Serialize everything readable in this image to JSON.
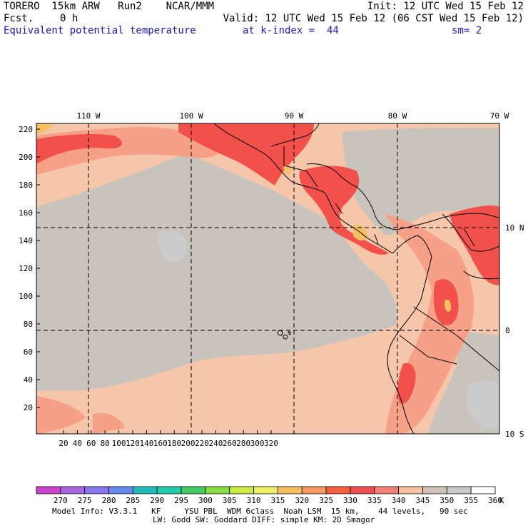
{
  "header": {
    "model": "TORERO  15km ARW   Run2    NCAR/MMM",
    "init": "Init: 12 UTC Wed 15 Feb 12",
    "fcst_label": "Fcst.",
    "fcst_value": "0 h",
    "valid": "Valid: 12 UTC Wed 15 Feb 12 (06 CST Wed 15 Feb 12)",
    "field": "Equivalent potential temperature",
    "level": "at k-index =  44",
    "smoothing": "sm= 2"
  },
  "map": {
    "lon_labels": [
      "110 W",
      "100 W",
      "90 W",
      "80 W",
      "70 W"
    ],
    "lat_labels": [
      "10 N",
      "0",
      "10 S"
    ],
    "x_ticks": [
      "20",
      "40",
      "60",
      "80",
      "100",
      "120",
      "140",
      "160",
      "180",
      "200",
      "220",
      "240",
      "260",
      "280",
      "300",
      "320"
    ],
    "y_ticks": [
      "220",
      "200",
      "180",
      "160",
      "140",
      "120",
      "100",
      "80",
      "60",
      "40",
      "20"
    ]
  },
  "colorbar": {
    "unit": "K",
    "labels": [
      "270",
      "275",
      "280",
      "285",
      "290",
      "295",
      "300",
      "305",
      "310",
      "315",
      "320",
      "325",
      "330",
      "335",
      "340",
      "345",
      "350",
      "355",
      "360"
    ],
    "colors": [
      "#cc44cc",
      "#aa66dd",
      "#8877ee",
      "#6688ee",
      "#22bbbb",
      "#22ccaa",
      "#44cc66",
      "#88dd44",
      "#ccee44",
      "#eeee66",
      "#f5c060",
      "#f59a60",
      "#f56040",
      "#f05050",
      "#f58078",
      "#f7bfa4",
      "#d2c3b6",
      "#c9c9c9",
      "#ffffff"
    ]
  },
  "footer": {
    "line1": "Model Info: V3.3.1   KF     YSU PBL  WDM 6class  Noah LSM  15 km,    44 levels,   90 sec",
    "line2": "LW: Godd SW: Goddard DIFF: simple KM: 2D Smagor"
  },
  "colors": {
    "text_blue": "#1a1acc",
    "base_tan": "#f5c6aa",
    "gray": "#c9c3bd",
    "salmon": "#f59a7c",
    "red": "#f2504a",
    "orange": "#f5c060"
  }
}
